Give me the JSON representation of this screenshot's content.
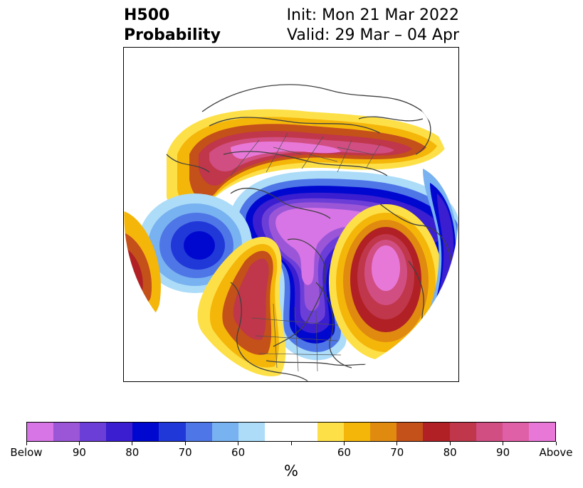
{
  "title": {
    "left_line1": "H500",
    "left_line2": "Probability",
    "right_line1": "Init: Mon 21 Mar 2022",
    "right_line2": "Valid: 29 Mar – 04 Apr"
  },
  "colorbar": {
    "colors": [
      "#d774e6",
      "#9b56d8",
      "#6c3ed8",
      "#3a1ed0",
      "#0008cf",
      "#2038d8",
      "#4e76e6",
      "#78b2f0",
      "#acdcf8",
      "#ffffff",
      "#ffffff",
      "#fde047",
      "#f5b60a",
      "#e08a10",
      "#c4501a",
      "#b02024",
      "#c0364a",
      "#d04e82",
      "#e060a8",
      "#e878d8"
    ],
    "tick_labels": [
      "Below",
      "90",
      "80",
      "70",
      "60",
      "",
      "60",
      "70",
      "80",
      "90",
      "Above"
    ],
    "units": "%"
  },
  "map": {
    "projection": "north-polar-stereographic",
    "region": "Northern Hemisphere",
    "background_color": "#ffffff",
    "coastline_color": "#404040"
  }
}
